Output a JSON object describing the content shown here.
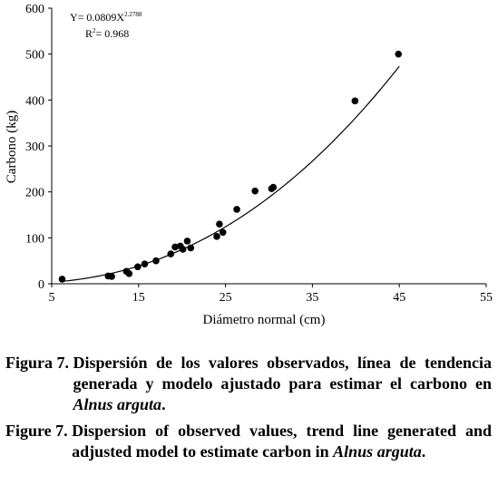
{
  "chart_data": {
    "type": "scatter",
    "xlabel": "Diámetro normal (cm)",
    "ylabel": "Carbono (kg)",
    "xlim": [
      5,
      55
    ],
    "ylim": [
      0,
      600
    ],
    "xticks": [
      5,
      15,
      25,
      35,
      45,
      55
    ],
    "yticks": [
      0,
      100,
      200,
      300,
      400,
      500,
      600
    ],
    "grid": false,
    "points": [
      {
        "x": 6.2,
        "y": 10
      },
      {
        "x": 11.5,
        "y": 17
      },
      {
        "x": 11.9,
        "y": 16
      },
      {
        "x": 13.6,
        "y": 27
      },
      {
        "x": 13.9,
        "y": 22
      },
      {
        "x": 14.9,
        "y": 37
      },
      {
        "x": 15.7,
        "y": 43
      },
      {
        "x": 17.0,
        "y": 50
      },
      {
        "x": 18.7,
        "y": 65
      },
      {
        "x": 19.2,
        "y": 80
      },
      {
        "x": 19.8,
        "y": 82
      },
      {
        "x": 20.1,
        "y": 75
      },
      {
        "x": 20.6,
        "y": 93
      },
      {
        "x": 21.0,
        "y": 78
      },
      {
        "x": 24.0,
        "y": 103
      },
      {
        "x": 24.3,
        "y": 130
      },
      {
        "x": 24.7,
        "y": 112
      },
      {
        "x": 26.3,
        "y": 162
      },
      {
        "x": 28.4,
        "y": 202
      },
      {
        "x": 30.3,
        "y": 207
      },
      {
        "x": 30.5,
        "y": 210
      },
      {
        "x": 39.9,
        "y": 398
      },
      {
        "x": 44.9,
        "y": 500
      }
    ],
    "trendline": {
      "model": "power",
      "a": 0.0809,
      "b": 2.2788,
      "x_from": 6,
      "x_to": 45,
      "equation_main": "Y= 0.0809X",
      "equation_exponent": "2.2788",
      "r2_prefix": "R",
      "r2_sup": "2",
      "r2_value": "= 0.968"
    }
  },
  "caption_es": {
    "label": "Figura 7.",
    "text_plain": "Dispersión de los valores observados, línea de tendencia generada y modelo ajustado para estimar el carbono en",
    "species": "Alnus arguta",
    "end": "."
  },
  "caption_en": {
    "label": "Figure 7.",
    "text_plain": "Dispersion of observed values, trend line generated and adjusted model to estimate carbon in",
    "species": "Alnus arguta",
    "end": "."
  }
}
